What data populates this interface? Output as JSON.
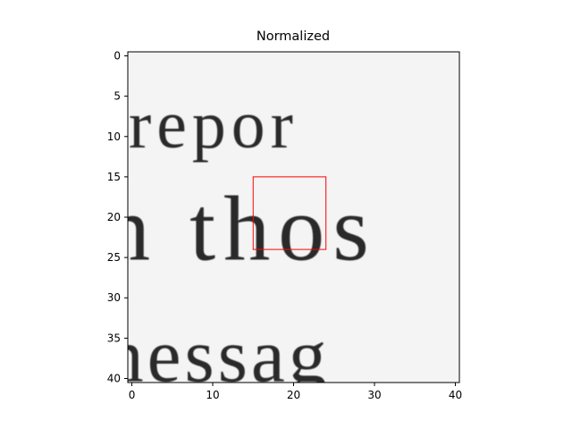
{
  "chart_data": {
    "type": "heatmap",
    "title": "Normalized",
    "xlabel": "",
    "ylabel": "",
    "colormap": "gray",
    "x_range": [
      -0.5,
      40.5
    ],
    "y_range": [
      40.5,
      -0.5
    ],
    "x_ticks": [
      0,
      10,
      20,
      30,
      40
    ],
    "y_ticks": [
      0,
      5,
      10,
      15,
      20,
      25,
      30,
      35,
      40
    ],
    "grid": false,
    "image_text_lines": [
      {
        "text": "repor",
        "row_top": 4,
        "row_bottom": 11
      },
      {
        "text": "n thos",
        "row_top": 15,
        "row_bottom": 25
      },
      {
        "text": "nessag",
        "row_top": 32,
        "row_bottom": 40
      }
    ],
    "highlight_box": {
      "x0": 15,
      "y0": 15,
      "x1": 24,
      "y1": 24,
      "color": "#ff0000"
    }
  }
}
